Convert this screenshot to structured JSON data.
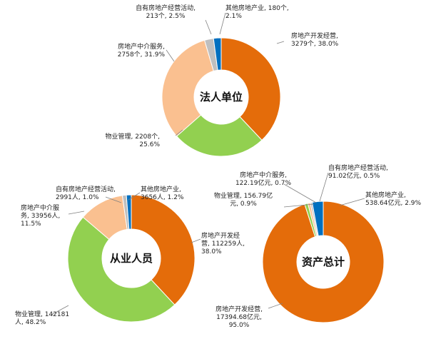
{
  "chart_data": [
    {
      "type": "pie",
      "title": "法人单位",
      "series": [
        {
          "name": "房地产开发经营",
          "display": [
            "房地产开发经营,",
            "3279个, 38.0%"
          ],
          "value": 3279,
          "percent": 38.0,
          "color": "#e46c0a"
        },
        {
          "name": "物业管理",
          "display": [
            "物业管理, 2208个,",
            "25.6%"
          ],
          "value": 2208,
          "percent": 25.6,
          "color": "#92d050"
        },
        {
          "name": "房地产中介服务",
          "display": [
            "房地产中介服务,",
            "2758个, 31.9%"
          ],
          "value": 2758,
          "percent": 31.9,
          "color": "#fac090"
        },
        {
          "name": "自有房地产经营活动",
          "display": [
            "自有房地产经营活动,",
            "213个, 2.5%"
          ],
          "value": 213,
          "percent": 2.5,
          "color": "#bfbfbf"
        },
        {
          "name": "其他房地产业",
          "display": [
            "其他房地产业, 180个,",
            "2.1%"
          ],
          "value": 180,
          "percent": 2.1,
          "color": "#0070c0"
        }
      ]
    },
    {
      "type": "pie",
      "title": "从业人员",
      "series": [
        {
          "name": "房地产开发经营",
          "display": [
            "房地产开发经",
            "营, 112259人,",
            "38.0%"
          ],
          "value": 112259,
          "percent": 38.0,
          "color": "#e46c0a"
        },
        {
          "name": "物业管理",
          "display": [
            "物业管理, 142181",
            "人, 48.2%"
          ],
          "value": 142181,
          "percent": 48.2,
          "color": "#92d050"
        },
        {
          "name": "房地产中介服务",
          "display": [
            "房地产中介服",
            "务, 33956人,",
            "11.5%"
          ],
          "value": 33956,
          "percent": 11.5,
          "color": "#fac090"
        },
        {
          "name": "自有房地产经营活动",
          "display": [
            "自有房地产经营活动,",
            "2991人, 1.0%"
          ],
          "value": 2991,
          "percent": 1.0,
          "color": "#bfbfbf"
        },
        {
          "name": "其他房地产业",
          "display": [
            "其他房地产业,",
            "3656人, 1.2%"
          ],
          "value": 3656,
          "percent": 1.2,
          "color": "#0070c0"
        }
      ]
    },
    {
      "type": "pie",
      "title": "资产总计",
      "series": [
        {
          "name": "房地产开发经营",
          "display": [
            "房地产开发经营,",
            "17394.68亿元,",
            "95.0%"
          ],
          "value": 17394.68,
          "percent": 95.0,
          "color": "#e46c0a"
        },
        {
          "name": "物业管理",
          "display": [
            "物业管理, 156.79亿",
            "元, 0.9%"
          ],
          "value": 156.79,
          "percent": 0.9,
          "color": "#92d050"
        },
        {
          "name": "房地产中介服务",
          "display": [
            "房地产中介服务,",
            "122.19亿元, 0.7%"
          ],
          "value": 122.19,
          "percent": 0.7,
          "color": "#fac090"
        },
        {
          "name": "自有房地产经营活动",
          "display": [
            "自有房地产经营活动,",
            "91.02亿元, 0.5%"
          ],
          "value": 91.02,
          "percent": 0.5,
          "color": "#bfbfbf"
        },
        {
          "name": "其他房地产业",
          "display": [
            "其他房地产业,",
            "538.64亿元, 2.9%"
          ],
          "value": 538.64,
          "percent": 2.9,
          "color": "#0070c0"
        }
      ]
    }
  ]
}
